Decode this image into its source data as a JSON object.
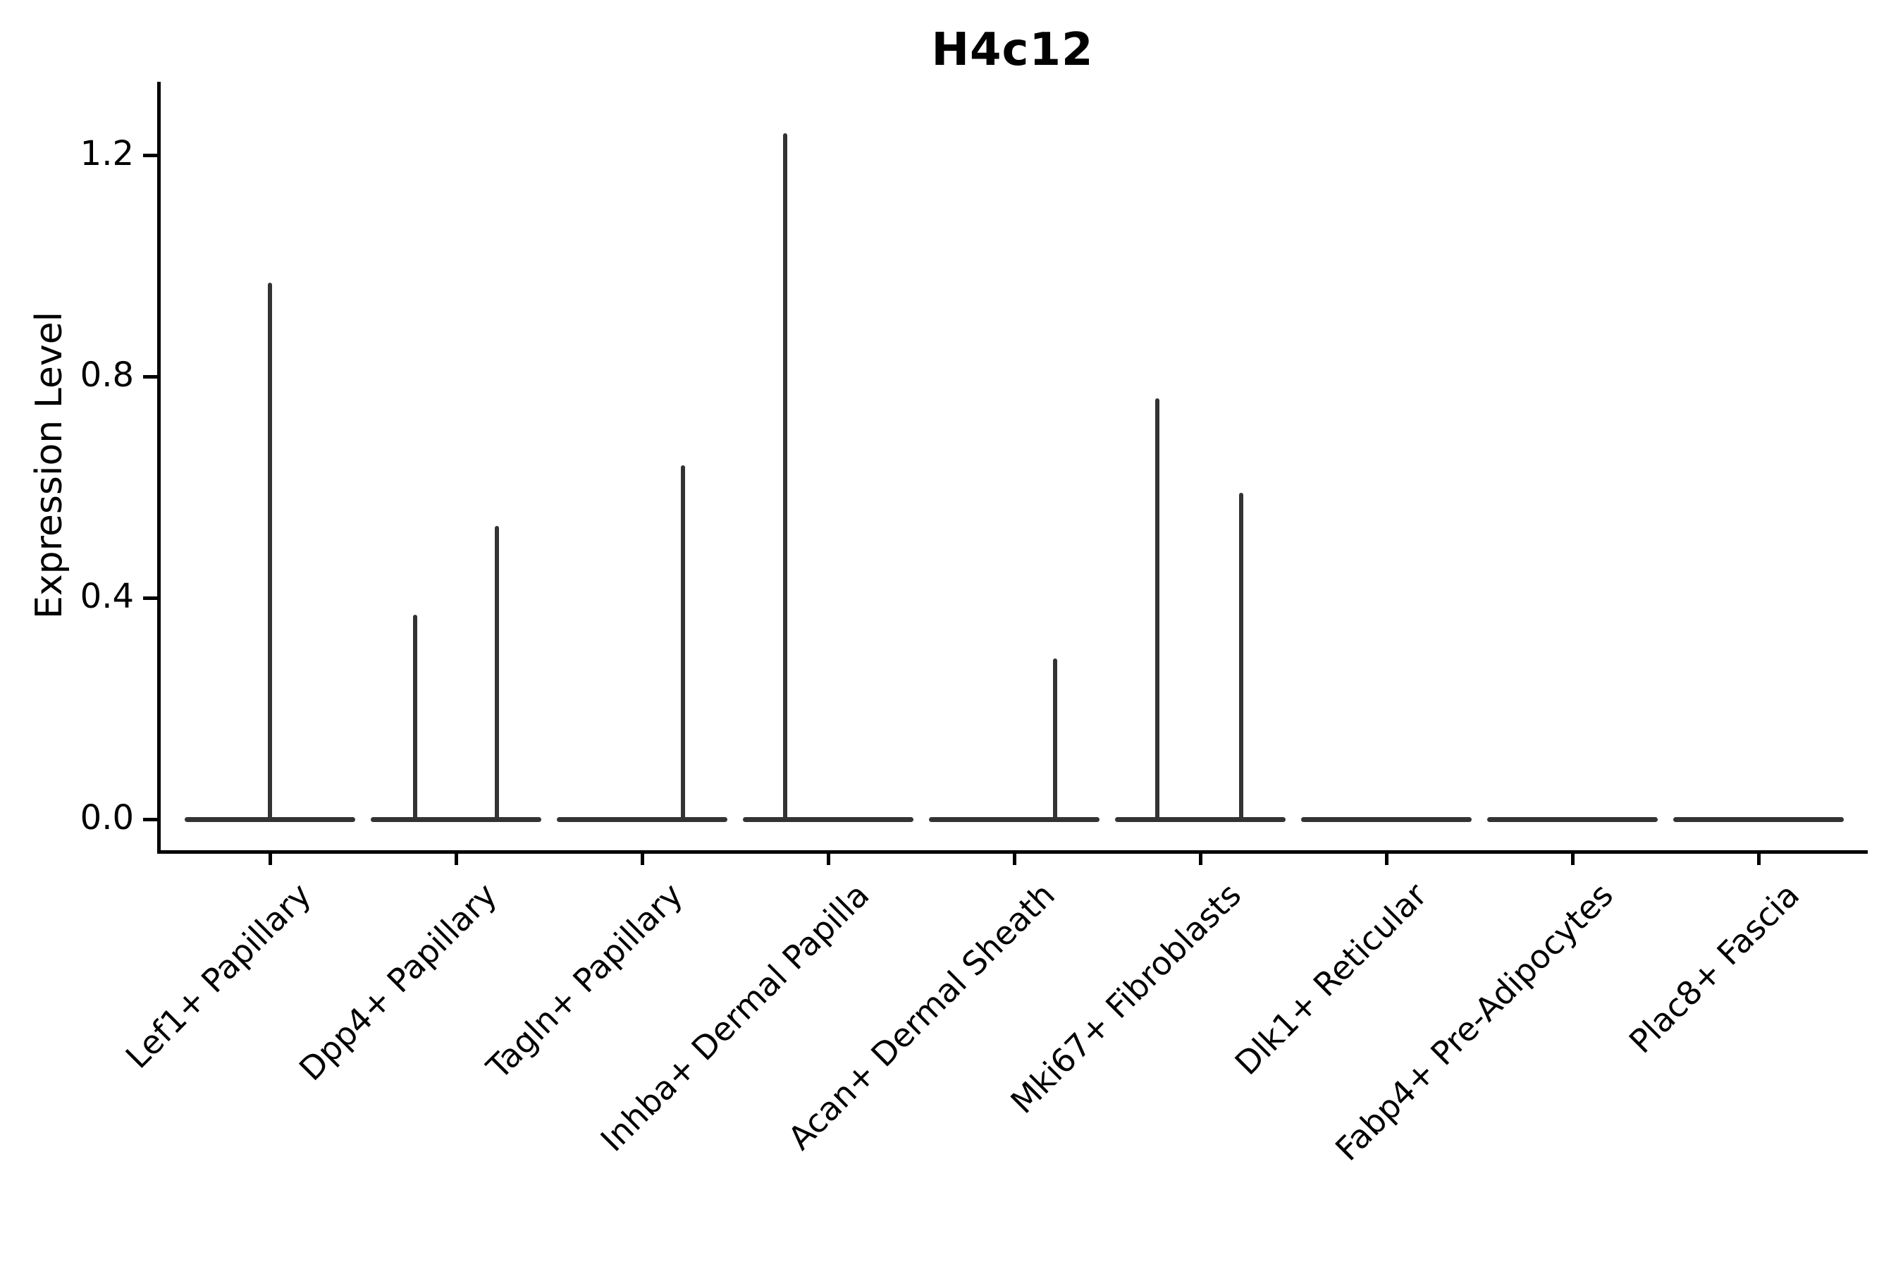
{
  "figure": {
    "title": "H4c12",
    "background": "#ffffff"
  },
  "y_axis": {
    "label": "Expression Level",
    "tick_labels": [
      "0.0",
      "0.4",
      "0.8",
      "1.2"
    ]
  },
  "x_axis": {
    "categories": [
      "Lef1+ Papillary",
      "Dpp4+ Papillary",
      "Tagln+ Papillary",
      "Inhba+ Dermal Papilla",
      "Acan+ Dermal Sheath",
      "Mki67+ Fibroblasts",
      "Dlk1+ Reticular",
      "Fabp4+ Pre-Adipocytes",
      "Plac8+ Fascia"
    ]
  },
  "chart_data": {
    "type": "violin",
    "title": "H4c12",
    "xlabel": "",
    "ylabel": "Expression Level",
    "yticks": [
      0.0,
      0.4,
      0.8,
      1.2
    ],
    "ylim": [
      -0.06,
      1.33
    ],
    "legend": "none",
    "grid": false,
    "categories": [
      "Lef1+ Papillary",
      "Dpp4+ Papillary",
      "Tagln+ Papillary",
      "Inhba+ Dermal Papilla",
      "Acan+ Dermal Sheath",
      "Mki67+ Fibroblasts",
      "Dlk1+ Reticular",
      "Fabp4+ Pre-Adipocytes",
      "Plac8+ Fascia"
    ],
    "series": [
      {
        "category": "Lef1+ Papillary",
        "baseline_value": 0,
        "spikes": [
          {
            "offset": 0.0,
            "value": 0.97
          }
        ]
      },
      {
        "category": "Dpp4+ Papillary",
        "baseline_value": 0,
        "spikes": [
          {
            "offset": -0.22,
            "value": 0.37
          },
          {
            "offset": 0.22,
            "value": 0.53
          }
        ]
      },
      {
        "category": "Tagln+ Papillary",
        "baseline_value": 0,
        "spikes": [
          {
            "offset": 0.22,
            "value": 0.64
          }
        ]
      },
      {
        "category": "Inhba+ Dermal Papilla",
        "baseline_value": 0,
        "spikes": [
          {
            "offset": -0.23,
            "value": 1.24
          }
        ]
      },
      {
        "category": "Acan+ Dermal Sheath",
        "baseline_value": 0,
        "spikes": [
          {
            "offset": 0.22,
            "value": 0.29
          }
        ]
      },
      {
        "category": "Mki67+ Fibroblasts",
        "baseline_value": 0,
        "spikes": [
          {
            "offset": -0.23,
            "value": 0.76
          },
          {
            "offset": 0.22,
            "value": 0.59
          }
        ]
      },
      {
        "category": "Dlk1+ Reticular",
        "baseline_value": 0,
        "spikes": []
      },
      {
        "category": "Fabp4+ Pre-Adipocytes",
        "baseline_value": 0,
        "spikes": []
      },
      {
        "category": "Plac8+ Fascia",
        "baseline_value": 0,
        "spikes": []
      }
    ],
    "violin_color": "#333333",
    "axis_color": "#000000"
  }
}
